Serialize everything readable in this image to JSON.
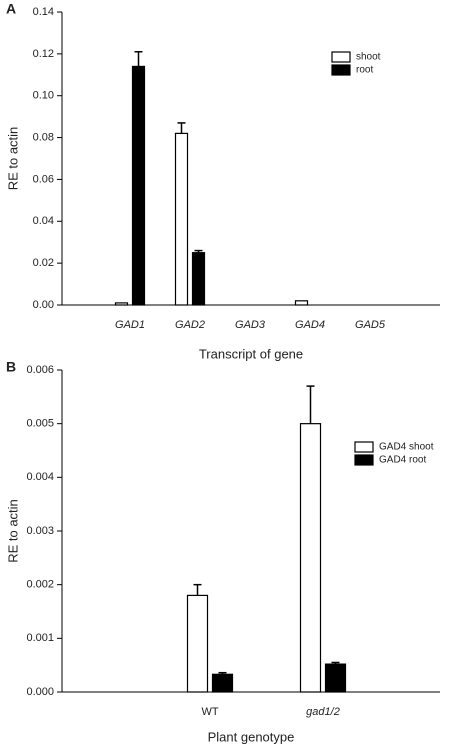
{
  "chart_data": [
    {
      "type": "bar",
      "panel_label": "A",
      "y_label": "RE to actin",
      "x_label": "Transcript of gene",
      "categories": [
        "GAD1",
        "GAD2",
        "GAD3",
        "GAD4",
        "GAD5"
      ],
      "series": [
        {
          "name": "shoot",
          "color": "#ffffff",
          "values": [
            0.001,
            0.082,
            0,
            0.002,
            0
          ],
          "errors": [
            0,
            0.005,
            0,
            0,
            0
          ]
        },
        {
          "name": "root",
          "color": "#000000",
          "values": [
            0.114,
            0.025,
            0,
            0,
            0
          ],
          "errors": [
            0.007,
            0.001,
            0,
            0,
            0
          ]
        }
      ],
      "ylim": [
        0,
        0.14
      ],
      "yticks": [
        {
          "value": 0,
          "label": "0.00"
        },
        {
          "value": 0.02,
          "label": "0.02"
        },
        {
          "value": 0.04,
          "label": "0.04"
        },
        {
          "value": 0.06,
          "label": "0.06"
        },
        {
          "value": 0.08,
          "label": "0.08"
        },
        {
          "value": 0.1,
          "label": "0.10"
        },
        {
          "value": 0.12,
          "label": "0.12"
        },
        {
          "value": 0.14,
          "label": "0.14"
        }
      ]
    },
    {
      "type": "bar",
      "panel_label": "B",
      "y_label": "RE to actin",
      "x_label": "Plant genotype",
      "categories": [
        "WT",
        "gad1/2"
      ],
      "series": [
        {
          "name": "GAD4 shoot",
          "color": "#ffffff",
          "values": [
            0.0018,
            0.005
          ],
          "errors": [
            0.0002,
            0.0007
          ]
        },
        {
          "name": "GAD4 root",
          "color": "#000000",
          "values": [
            0.00033,
            0.00052
          ],
          "errors": [
            3e-05,
            3e-05
          ]
        }
      ],
      "ylim": [
        0,
        0.006
      ],
      "yticks": [
        {
          "value": 0,
          "label": "0.000"
        },
        {
          "value": 0.001,
          "label": "0.001"
        },
        {
          "value": 0.002,
          "label": "0.002"
        },
        {
          "value": 0.003,
          "label": "0.003"
        },
        {
          "value": 0.004,
          "label": "0.004"
        },
        {
          "value": 0.005,
          "label": "0.005"
        },
        {
          "value": 0.006,
          "label": "0.006"
        }
      ]
    }
  ]
}
